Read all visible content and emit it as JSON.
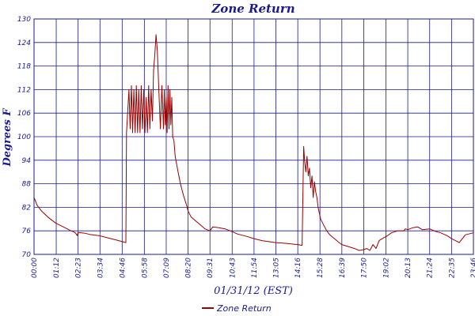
{
  "chart_data": {
    "type": "line",
    "title": "Zone Return",
    "xlabel": "01/31/12 (EST)",
    "ylabel": "Degrees F",
    "ylim": [
      70,
      130
    ],
    "xlim": [
      "00:00",
      "23:46"
    ],
    "y_ticks": [
      "70",
      "76",
      "82",
      "88",
      "94",
      "100",
      "106",
      "112",
      "118",
      "124",
      "130"
    ],
    "x_ticks": [
      "00:00",
      "01:12",
      "02:23",
      "03:34",
      "04:46",
      "05:58",
      "07:09",
      "08:20",
      "09:31",
      "10:43",
      "11:54",
      "13:05",
      "14:16",
      "15:28",
      "16:39",
      "17:50",
      "19:02",
      "20:13",
      "21:24",
      "22:35",
      "23:46"
    ],
    "grid": true,
    "legend_position": "bottom-left",
    "colors": {
      "series": "#990000",
      "grid": "#1a1a8c",
      "text": "#1a1a8c"
    },
    "series": [
      {
        "name": "Zone Return",
        "x": [
          "00:00",
          "00:10",
          "00:25",
          "00:45",
          "01:10",
          "01:35",
          "02:00",
          "02:10",
          "02:15",
          "02:20",
          "02:23",
          "02:45",
          "03:00",
          "03:30",
          "04:00",
          "04:30",
          "04:58",
          "05:00",
          "05:08",
          "05:12",
          "05:16",
          "05:20",
          "05:24",
          "05:28",
          "05:32",
          "05:36",
          "05:40",
          "05:44",
          "05:48",
          "05:52",
          "05:56",
          "06:00",
          "06:04",
          "06:08",
          "06:12",
          "06:16",
          "06:20",
          "06:24",
          "06:28",
          "06:32",
          "06:36",
          "06:40",
          "06:45",
          "06:50",
          "06:55",
          "07:00",
          "07:03",
          "07:06",
          "07:09",
          "07:12",
          "07:15",
          "07:18",
          "07:21",
          "07:24",
          "07:27",
          "07:30",
          "07:34",
          "07:38",
          "07:45",
          "07:55",
          "08:05",
          "08:15",
          "08:20",
          "08:30",
          "08:45",
          "09:00",
          "09:15",
          "09:31",
          "09:40",
          "10:00",
          "10:20",
          "10:43",
          "11:00",
          "11:30",
          "11:54",
          "12:20",
          "13:05",
          "13:40",
          "14:16",
          "14:30",
          "14:35",
          "14:38",
          "14:42",
          "14:46",
          "14:50",
          "14:54",
          "14:58",
          "15:02",
          "15:06",
          "15:10",
          "15:14",
          "15:18",
          "15:22",
          "15:26",
          "15:30",
          "15:40",
          "15:50",
          "16:00",
          "16:15",
          "16:30",
          "16:39",
          "17:00",
          "17:20",
          "17:35",
          "17:50",
          "18:00",
          "18:10",
          "18:20",
          "18:30",
          "18:40",
          "18:50",
          "19:02",
          "19:20",
          "19:40",
          "20:00",
          "20:05",
          "20:13",
          "20:30",
          "20:45",
          "21:00",
          "21:24",
          "21:45",
          "22:00",
          "22:20",
          "22:35",
          "22:40",
          "23:00",
          "23:20",
          "23:46"
        ],
        "values": [
          84.5,
          82.5,
          81,
          79.5,
          78,
          77,
          76,
          75.7,
          75.4,
          74.8,
          75.6,
          75.4,
          75.1,
          74.8,
          74.2,
          73.6,
          73,
          101,
          112,
          102,
          113,
          101,
          112,
          101,
          113,
          101,
          112,
          101,
          113,
          102,
          112,
          101,
          110,
          101,
          113,
          102,
          112,
          104,
          117,
          121,
          126,
          122,
          112,
          102,
          113,
          102,
          112,
          103,
          110,
          101,
          113,
          102,
          112,
          103,
          110,
          100,
          99,
          95,
          92,
          88,
          85,
          82.5,
          81,
          79.5,
          78.5,
          77.5,
          76.5,
          76,
          77,
          76.8,
          76.5,
          75.8,
          75.2,
          74.6,
          74,
          73.5,
          73,
          72.8,
          72.5,
          72.3,
          97.5,
          94,
          91,
          95,
          90,
          92,
          87,
          90,
          84.5,
          88.5,
          86,
          84.5,
          82,
          80.5,
          79,
          77.5,
          76,
          75,
          74,
          73,
          72.5,
          72,
          71.5,
          71,
          71.2,
          71.5,
          71,
          72.5,
          71.5,
          73.5,
          74,
          74.5,
          75.5,
          76,
          76,
          76.5,
          76.3,
          76.8,
          77,
          76.3,
          76.5,
          75.8,
          75.5,
          74.8,
          74,
          73.8,
          73,
          75,
          75.5
        ]
      }
    ]
  },
  "legend": {
    "label": "Zone Return"
  }
}
